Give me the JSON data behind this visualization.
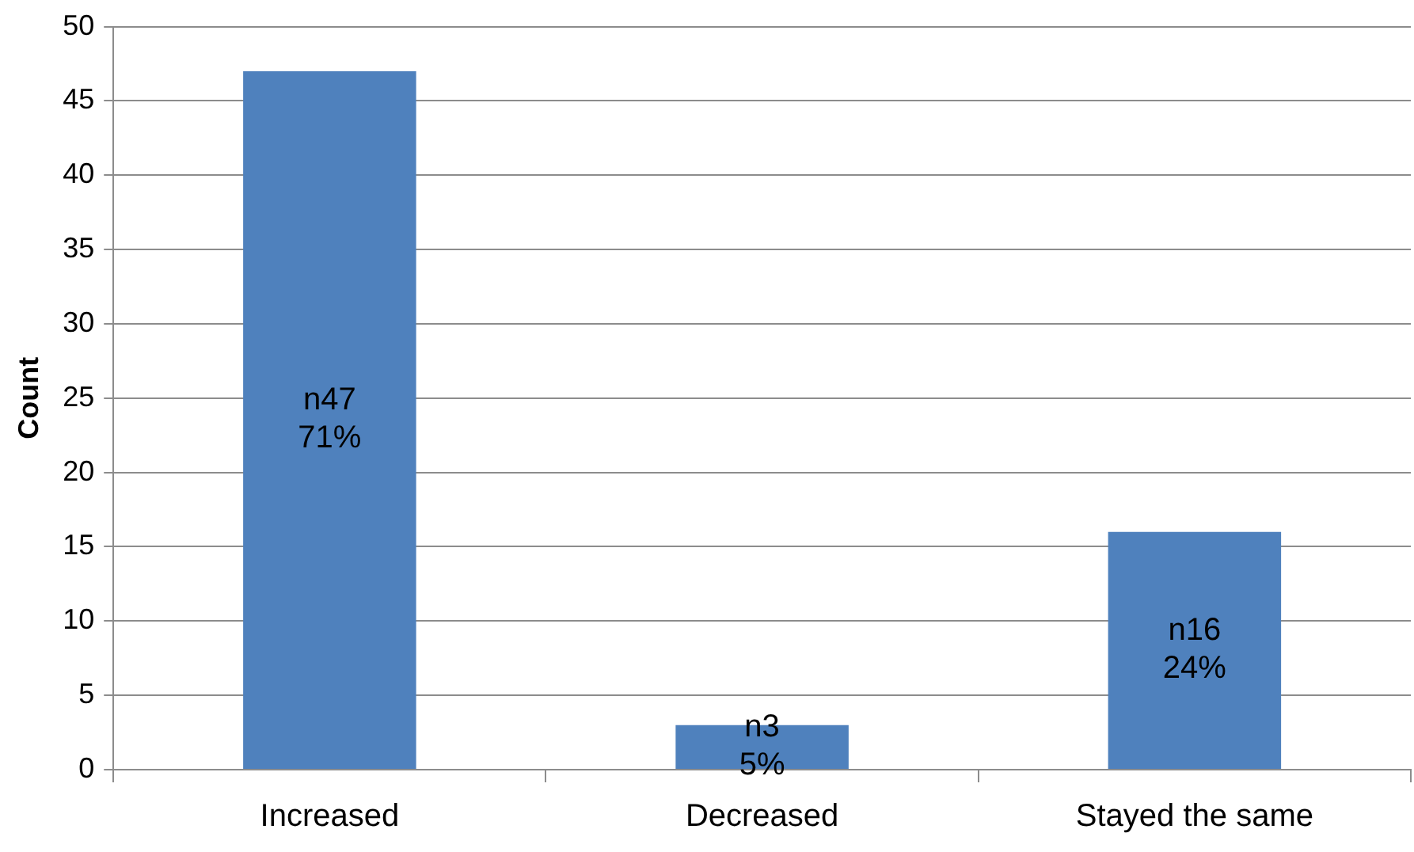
{
  "chart_data": {
    "type": "bar",
    "ylabel": "Count",
    "categories": [
      "Increased",
      "Decreased",
      "Stayed the same"
    ],
    "values": [
      47,
      3,
      16
    ],
    "color": "#4f81bd",
    "value_labels": [
      "n47\n71%",
      "n3\n5%",
      "n16\n24%"
    ],
    "ylim": [
      0,
      50
    ],
    "yticks": [
      0,
      5,
      10,
      15,
      20,
      25,
      30,
      35,
      40,
      45,
      50
    ],
    "grid": "y",
    "legend": false
  }
}
